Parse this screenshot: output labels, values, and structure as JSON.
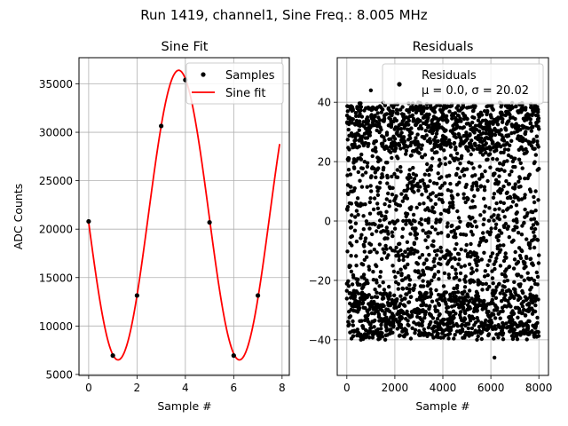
{
  "figure": {
    "suptitle": "Run 1419, channel1, Sine Freq.: 8.005 MHz"
  },
  "chart_data": [
    {
      "type": "line",
      "title": "Sine Fit",
      "xlabel": "Sample #",
      "ylabel": "ADC Counts",
      "xlim": [
        -0.4,
        8.3
      ],
      "ylim": [
        4900,
        37700
      ],
      "xticks": [
        0,
        2,
        4,
        6,
        8
      ],
      "yticks": [
        5000,
        10000,
        15000,
        20000,
        25000,
        30000,
        35000
      ],
      "xtick_labels": [
        "0",
        "2",
        "4",
        "6",
        "8"
      ],
      "ytick_labels": [
        "5000",
        "10000",
        "15000",
        "20000",
        "25000",
        "30000",
        "35000"
      ],
      "grid": true,
      "legend": "top-right",
      "legend_entries": [
        "Samples",
        "Sine fit"
      ],
      "series": [
        {
          "name": "Samples",
          "kind": "scatter",
          "color": "#000000",
          "x": [
            0,
            1,
            2,
            3,
            4,
            5,
            6,
            7
          ],
          "y": [
            20800,
            6950,
            13150,
            30650,
            35400,
            20700,
            6950,
            13150
          ]
        },
        {
          "name": "Sine fit",
          "kind": "line",
          "color": "#ff0000",
          "model": {
            "offset": 21450,
            "amplitude": 14950,
            "period": 5.02,
            "phase_x": 2.47
          },
          "x_range": [
            0,
            7.9
          ]
        }
      ]
    },
    {
      "type": "scatter",
      "title": "Residuals",
      "xlabel": "Sample #",
      "ylabel": "",
      "xlim": [
        -400,
        8400
      ],
      "ylim": [
        -52,
        55
      ],
      "xticks": [
        0,
        2000,
        4000,
        6000,
        8000
      ],
      "yticks": [
        -40,
        -20,
        0,
        20,
        40
      ],
      "xtick_labels": [
        "0",
        "2000",
        "4000",
        "6000",
        "8000"
      ],
      "ytick_labels": [
        "−40",
        "−20",
        "0",
        "20",
        "40"
      ],
      "grid": true,
      "legend": "top-right",
      "legend_entries": [
        "Residuals",
        "μ = 0.0, σ = 20.02"
      ],
      "series": [
        {
          "name": "Residuals",
          "color": "#000000",
          "stats": {
            "mean": 0.0,
            "std": 20.02
          },
          "x_range": [
            0,
            8000
          ],
          "min": -46,
          "max": 44
        }
      ]
    }
  ]
}
